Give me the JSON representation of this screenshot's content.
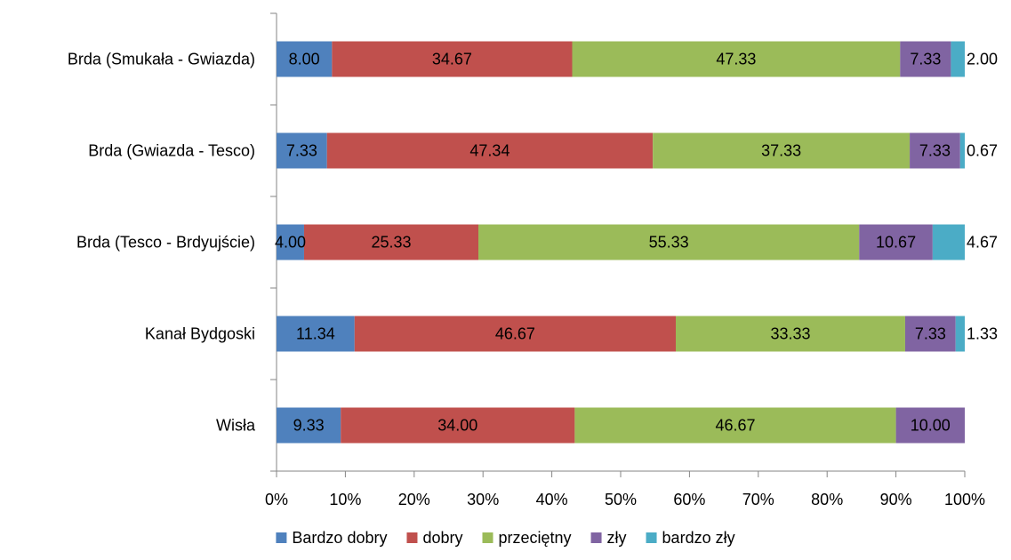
{
  "chart_data": {
    "type": "bar",
    "orientation": "horizontal",
    "stacked": "percent",
    "title": "",
    "xlabel": "",
    "ylabel": "",
    "categories": [
      "Brda (Smukała - Gwiazda)",
      "Brda (Gwiazda - Tesco)",
      "Brda (Tesco - Brdyujście)",
      "Kanał Bydgoski",
      "Wisła"
    ],
    "series": [
      {
        "name": "Bardzo dobry",
        "color": "#4F81BD",
        "values": [
          8.0,
          7.33,
          4.0,
          11.34,
          9.33
        ],
        "labels": [
          "8.00",
          "7.33",
          "4.00",
          "11.34",
          "9.33"
        ]
      },
      {
        "name": "dobry",
        "color": "#C0504D",
        "values": [
          34.67,
          47.34,
          25.33,
          46.67,
          34.0
        ],
        "labels": [
          "34.67",
          "47.34",
          "25.33",
          "46.67",
          "34.00"
        ]
      },
      {
        "name": "przeciętny",
        "color": "#9BBB59",
        "values": [
          47.33,
          37.33,
          55.33,
          33.33,
          46.67
        ],
        "labels": [
          "47.33",
          "37.33",
          "55.33",
          "33.33",
          "46.67"
        ]
      },
      {
        "name": "zły",
        "color": "#8064A2",
        "values": [
          7.33,
          7.33,
          10.67,
          7.33,
          10.0
        ],
        "labels": [
          "7.33",
          "7.33",
          "10.67",
          "7.33",
          "10.00"
        ]
      },
      {
        "name": "bardzo zły",
        "color": "#4BACC6",
        "values": [
          2.0,
          0.67,
          4.67,
          1.33,
          0
        ],
        "labels": [
          "2.00",
          "0.67",
          "4.67",
          "1.33",
          ""
        ]
      }
    ],
    "xlim": [
      0,
      100
    ],
    "xticks": [
      "0%",
      "10%",
      "20%",
      "30%",
      "40%",
      "50%",
      "60%",
      "70%",
      "80%",
      "90%",
      "100%"
    ],
    "grid": false,
    "legend": "bottom"
  }
}
